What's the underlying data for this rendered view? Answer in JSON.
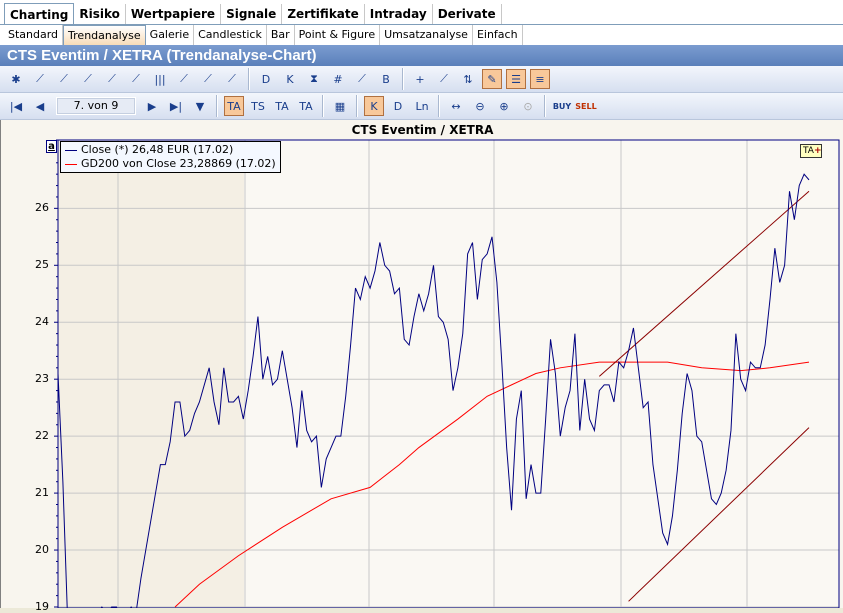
{
  "tabs_main": [
    "Charting",
    "Risiko",
    "Wertpapiere",
    "Signale",
    "Zertifikate",
    "Intraday",
    "Derivate"
  ],
  "tabs_main_active": 0,
  "tabs_sub": [
    "Standard",
    "Trendanalyse",
    "Galerie",
    "Candlestick",
    "Bar",
    "Point & Figure",
    "Umsatzanalyse",
    "Einfach"
  ],
  "tabs_sub_active": 1,
  "window_title": "CTS Eventim / XETRA (Trendanalyse-Chart)",
  "toolbar1_icons": [
    "insert-indicator-icon",
    "line-chart-icon",
    "signal-chart-icon",
    "compare-icon",
    "ratio-icon",
    "area-chart-icon",
    "volume-icon",
    "new-chart-icon",
    "cloud-icon",
    "add-line-icon",
    "d-chart-icon",
    "k-chart-icon",
    "hourglass-icon",
    "grid-icon",
    "channel-icon",
    "buy-sell-icon",
    "crosshair-icon",
    "overlay-icon",
    "arrows-icon",
    "draw-trend-icon",
    "legend-icon",
    "list-icon"
  ],
  "toolbar1_active": [
    19,
    20,
    21
  ],
  "toolbar2": {
    "pager": "7. von 9",
    "ta_labels": [
      "TA",
      "TS",
      "TA",
      "TA"
    ],
    "buy": "BUY",
    "sell": "SELL",
    "ln": "Ln"
  },
  "chart_data": {
    "type": "line",
    "title": "CTS Eventim / XETRA",
    "ylim": [
      19,
      27.2
    ],
    "yticks": [
      19,
      20,
      21,
      22,
      23,
      24,
      25,
      26
    ],
    "grid": true,
    "legend_placement": "top-left",
    "legend": [
      "Close (*) 26,48 EUR (17.02)",
      "GD200 von Close 23,28869 (17.02)"
    ],
    "colors": {
      "close": "#000080",
      "gd200": "#ff0000",
      "trend": "#8b0000"
    },
    "close": [
      23.1,
      21.2,
      18.7,
      18.6,
      18.7,
      18.8,
      18.9,
      18.8,
      18.9,
      19.0,
      18.9,
      19.0,
      19.0,
      18.8,
      18.9,
      19.0,
      18.9,
      19.5,
      20.0,
      20.5,
      21.0,
      21.5,
      21.5,
      21.9,
      22.6,
      22.6,
      22.0,
      22.1,
      22.4,
      22.6,
      22.9,
      23.2,
      22.6,
      22.2,
      23.2,
      22.6,
      22.6,
      22.7,
      22.3,
      22.8,
      23.4,
      24.1,
      23.0,
      23.4,
      22.9,
      23.0,
      23.5,
      23.0,
      22.5,
      21.8,
      22.8,
      22.1,
      21.9,
      22.0,
      21.1,
      21.6,
      21.8,
      22.0,
      22.0,
      22.7,
      23.6,
      24.6,
      24.4,
      24.8,
      24.6,
      24.9,
      25.4,
      25.0,
      24.9,
      24.5,
      24.6,
      23.7,
      23.6,
      24.1,
      24.5,
      24.2,
      24.5,
      25.0,
      24.1,
      24.0,
      23.7,
      22.8,
      23.2,
      23.8,
      25.2,
      25.4,
      24.4,
      25.1,
      25.2,
      25.5,
      24.7,
      23.3,
      21.8,
      20.7,
      22.3,
      22.8,
      20.9,
      21.5,
      21.0,
      21.0,
      22.3,
      23.7,
      23.1,
      22.0,
      22.5,
      22.8,
      23.8,
      22.1,
      23.0,
      22.3,
      22.1,
      22.8,
      22.9,
      22.9,
      22.6,
      23.3,
      23.2,
      23.5,
      23.9,
      23.2,
      22.5,
      22.6,
      21.5,
      20.9,
      20.3,
      20.1,
      20.6,
      21.4,
      22.4,
      23.1,
      22.8,
      22.0,
      21.9,
      21.4,
      20.9,
      20.8,
      21.0,
      21.4,
      22.1,
      23.8,
      23.0,
      22.8,
      23.3,
      23.2,
      23.2,
      23.6,
      24.4,
      25.3,
      24.7,
      25.0,
      26.3,
      25.8,
      26.4,
      26.6,
      26.5
    ],
    "gd200": [
      [
        24,
        19.0
      ],
      [
        29,
        19.4
      ],
      [
        37,
        19.9
      ],
      [
        46,
        20.4
      ],
      [
        56,
        20.9
      ],
      [
        64,
        21.1
      ],
      [
        70,
        21.5
      ],
      [
        74,
        21.8
      ],
      [
        82,
        22.3
      ],
      [
        88,
        22.7
      ],
      [
        93,
        22.9
      ],
      [
        98,
        23.1
      ],
      [
        103,
        23.2
      ],
      [
        111,
        23.3
      ],
      [
        121,
        23.3
      ],
      [
        125,
        23.3
      ],
      [
        132,
        23.2
      ],
      [
        140,
        23.15
      ],
      [
        146,
        23.2
      ],
      [
        154,
        23.3
      ]
    ],
    "trendlines": [
      {
        "from": [
          111,
          23.05
        ],
        "to": [
          154,
          26.3
        ]
      },
      {
        "from": [
          117,
          19.1
        ],
        "to": [
          154,
          22.15
        ]
      }
    ]
  }
}
